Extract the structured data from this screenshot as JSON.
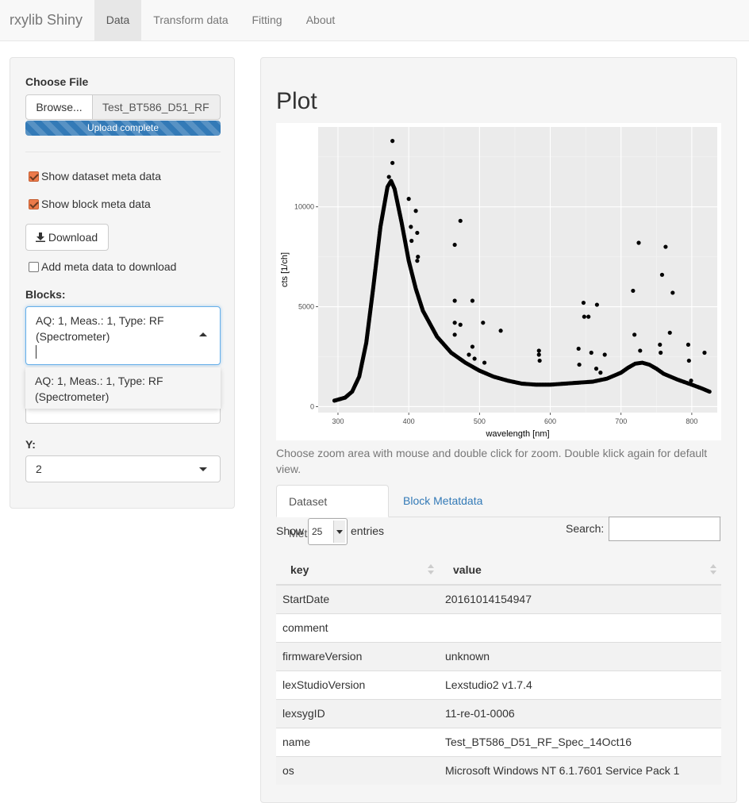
{
  "navbar": {
    "brand": "rxylib Shiny",
    "tabs": [
      {
        "label": "Data",
        "active": true
      },
      {
        "label": "Transform data",
        "active": false
      },
      {
        "label": "Fitting",
        "active": false
      },
      {
        "label": "About",
        "active": false
      }
    ]
  },
  "sidebar": {
    "choose_file_label": "Choose File",
    "browse_label": "Browse...",
    "file_name": "Test_BT586_D51_RF",
    "upload_status": "Upload complete",
    "checkbox_dataset_meta": {
      "label": "Show dataset meta data",
      "checked": true
    },
    "checkbox_block_meta": {
      "label": "Show block meta data",
      "checked": true
    },
    "download_label": "Download",
    "checkbox_add_meta": {
      "label": "Add meta data to download",
      "checked": false
    },
    "blocks_label": "Blocks:",
    "blocks_selected": "AQ: 1, Meas.: 1, Type: RF (Spectrometer)",
    "blocks_option": "AQ: 1, Meas.: 1, Type: RF (Spectrometer)",
    "y_label": "Y:",
    "y_value": "2",
    "accent_color": "#ec7a4a"
  },
  "main": {
    "plot_title": "Plot",
    "hint": "Choose zoom area with mouse and double click for zoom. Double klick again for default view.",
    "tabs": [
      {
        "label": "Dataset Metadata",
        "active": true
      },
      {
        "label": "Block Metatdata",
        "active": false
      }
    ],
    "show_label": "Show",
    "entries_value": "25",
    "entries_label": "entries",
    "search_label": "Search:",
    "table": {
      "headers": [
        "key",
        "value"
      ],
      "rows": [
        [
          "StartDate",
          "20161014154947"
        ],
        [
          "comment",
          ""
        ],
        [
          "firmwareVersion",
          "unknown"
        ],
        [
          "lexStudioVersion",
          "Lexstudio2 v1.7.4"
        ],
        [
          "lexsygID",
          "11-re-01-0006"
        ],
        [
          "name",
          "Test_BT586_D51_RF_Spec_14Oct16"
        ],
        [
          "os",
          "Microsoft Windows NT 6.1.7601 Service Pack 1"
        ]
      ]
    }
  },
  "chart_data": {
    "type": "scatter",
    "xlabel": "wavelength [nm]",
    "ylabel": "cts [1/ch]",
    "xlim": [
      272,
      836
    ],
    "ylim": [
      -300,
      14000
    ],
    "x_ticks": [
      300,
      400,
      500,
      600,
      700,
      800
    ],
    "y_ticks": [
      0,
      5000,
      10000
    ],
    "y_tick_labels": [
      "0",
      "5000",
      "10000"
    ],
    "grid": true,
    "point_color": "#000000",
    "panel_background": "#ebebeb",
    "profile": [
      [
        295,
        300
      ],
      [
        310,
        450
      ],
      [
        320,
        750
      ],
      [
        330,
        1500
      ],
      [
        340,
        3200
      ],
      [
        350,
        6000
      ],
      [
        360,
        9000
      ],
      [
        370,
        11000
      ],
      [
        375,
        11300
      ],
      [
        380,
        10900
      ],
      [
        390,
        9200
      ],
      [
        400,
        7300
      ],
      [
        410,
        5900
      ],
      [
        420,
        4800
      ],
      [
        440,
        3500
      ],
      [
        460,
        2700
      ],
      [
        480,
        2200
      ],
      [
        500,
        1800
      ],
      [
        520,
        1500
      ],
      [
        540,
        1300
      ],
      [
        560,
        1150
      ],
      [
        580,
        1100
      ],
      [
        600,
        1100
      ],
      [
        620,
        1150
      ],
      [
        640,
        1200
      ],
      [
        660,
        1250
      ],
      [
        680,
        1400
      ],
      [
        700,
        1700
      ],
      [
        710,
        1950
      ],
      [
        720,
        2150
      ],
      [
        730,
        2200
      ],
      [
        740,
        2100
      ],
      [
        750,
        1900
      ],
      [
        760,
        1650
      ],
      [
        780,
        1350
      ],
      [
        800,
        1100
      ],
      [
        815,
        900
      ],
      [
        825,
        750
      ]
    ],
    "outliers": [
      [
        377,
        13300
      ],
      [
        377,
        12200
      ],
      [
        372,
        11500
      ],
      [
        400,
        10400
      ],
      [
        410,
        9800
      ],
      [
        403,
        9000
      ],
      [
        404,
        8300
      ],
      [
        412,
        8700
      ],
      [
        412,
        7300
      ],
      [
        413,
        7500
      ],
      [
        465,
        8100
      ],
      [
        465,
        5300
      ],
      [
        465,
        4200
      ],
      [
        465,
        3600
      ],
      [
        473,
        9300
      ],
      [
        473,
        4100
      ],
      [
        490,
        5300
      ],
      [
        490,
        3000
      ],
      [
        485,
        2600
      ],
      [
        493,
        2400
      ],
      [
        505,
        4200
      ],
      [
        507,
        2200
      ],
      [
        530,
        3800
      ],
      [
        584,
        2800
      ],
      [
        584,
        2600
      ],
      [
        585,
        2300
      ],
      [
        640,
        2900
      ],
      [
        641,
        2100
      ],
      [
        647,
        5200
      ],
      [
        648,
        4500
      ],
      [
        654,
        4500
      ],
      [
        658,
        2700
      ],
      [
        666,
        5100
      ],
      [
        665,
        1900
      ],
      [
        671,
        1700
      ],
      [
        677,
        2600
      ],
      [
        717,
        5800
      ],
      [
        719,
        3600
      ],
      [
        725,
        8200
      ],
      [
        727,
        2800
      ],
      [
        755,
        3100
      ],
      [
        758,
        6600
      ],
      [
        763,
        8000
      ],
      [
        769,
        3700
      ],
      [
        773,
        5700
      ],
      [
        756,
        2700
      ],
      [
        795,
        3100
      ],
      [
        796,
        2300
      ],
      [
        799,
        1300
      ],
      [
        818,
        2700
      ]
    ]
  }
}
